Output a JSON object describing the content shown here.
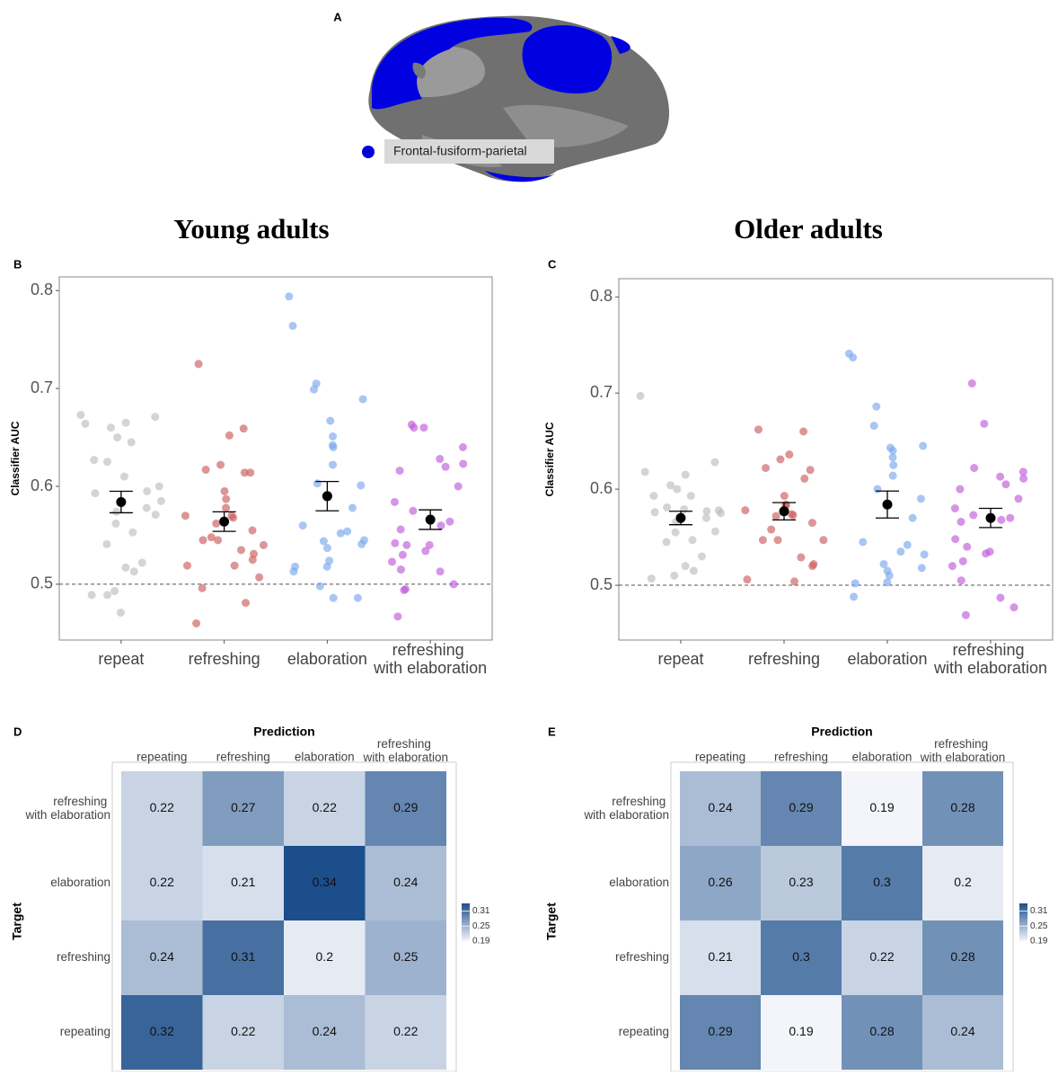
{
  "figure_a": {
    "label": "A",
    "legend": "Frontal-fusiform-parietal",
    "legend_color": "#0000d8"
  },
  "chart_data": [
    {
      "type": "strip",
      "label": "B",
      "title": "Young adults",
      "y_label": "Classifier AUC",
      "categories": [
        "repeat",
        "refreshing",
        "elaboration",
        "refreshing with elaboration"
      ],
      "colors": [
        "#bdbdbd",
        "#cd5c5c",
        "#7aa7ee",
        "#c05bd8"
      ],
      "points": [
        [
          0.673,
          0.671,
          0.664,
          0.665,
          0.66,
          0.65,
          0.645,
          0.627,
          0.625,
          0.61,
          0.6,
          0.595,
          0.593,
          0.585,
          0.578,
          0.574,
          0.571,
          0.562,
          0.553,
          0.541,
          0.522,
          0.517,
          0.513,
          0.493,
          0.489,
          0.489,
          0.471
        ],
        [
          0.725,
          0.659,
          0.652,
          0.622,
          0.617,
          0.614,
          0.614,
          0.595,
          0.587,
          0.578,
          0.57,
          0.57,
          0.568,
          0.562,
          0.555,
          0.548,
          0.545,
          0.545,
          0.54,
          0.535,
          0.531,
          0.525,
          0.519,
          0.519,
          0.507,
          0.496,
          0.481,
          0.46
        ],
        [
          0.794,
          0.764,
          0.705,
          0.699,
          0.689,
          0.667,
          0.651,
          0.642,
          0.64,
          0.622,
          0.603,
          0.601,
          0.578,
          0.56,
          0.554,
          0.552,
          0.545,
          0.544,
          0.541,
          0.537,
          0.524,
          0.518,
          0.518,
          0.513,
          0.498,
          0.486,
          0.486
        ],
        [
          0.663,
          0.66,
          0.66,
          0.64,
          0.628,
          0.623,
          0.62,
          0.616,
          0.6,
          0.584,
          0.575,
          0.564,
          0.56,
          0.556,
          0.542,
          0.54,
          0.54,
          0.534,
          0.53,
          0.523,
          0.515,
          0.513,
          0.5,
          0.495,
          0.494,
          0.467
        ]
      ],
      "means": [
        0.584,
        0.564,
        0.59,
        0.566
      ],
      "errors": [
        0.011,
        0.01,
        0.015,
        0.01
      ],
      "reference_line": 0.5,
      "ylim": [
        0.443,
        0.814
      ],
      "yticks": [
        0.5,
        0.6,
        0.7,
        0.8
      ]
    },
    {
      "type": "strip",
      "label": "C",
      "title": "Older adults",
      "y_label": "Classifier AUC",
      "categories": [
        "repeat",
        "refreshing",
        "elaboration",
        "refreshing with elaboration"
      ],
      "colors": [
        "#bdbdbd",
        "#cd5c5c",
        "#7aa7ee",
        "#c05bd8"
      ],
      "points": [
        [
          0.697,
          0.628,
          0.618,
          0.615,
          0.604,
          0.6,
          0.593,
          0.593,
          0.581,
          0.579,
          0.578,
          0.577,
          0.576,
          0.575,
          0.57,
          0.566,
          0.556,
          0.555,
          0.547,
          0.545,
          0.53,
          0.52,
          0.515,
          0.51,
          0.507
        ],
        [
          0.662,
          0.66,
          0.636,
          0.631,
          0.622,
          0.62,
          0.611,
          0.593,
          0.584,
          0.583,
          0.578,
          0.574,
          0.573,
          0.572,
          0.565,
          0.558,
          0.547,
          0.547,
          0.547,
          0.529,
          0.522,
          0.52,
          0.506,
          0.504
        ],
        [
          0.741,
          0.737,
          0.686,
          0.666,
          0.645,
          0.643,
          0.64,
          0.633,
          0.625,
          0.614,
          0.6,
          0.59,
          0.57,
          0.545,
          0.542,
          0.535,
          0.532,
          0.522,
          0.518,
          0.515,
          0.51,
          0.503,
          0.502,
          0.488
        ],
        [
          0.71,
          0.668,
          0.622,
          0.618,
          0.613,
          0.611,
          0.605,
          0.6,
          0.59,
          0.58,
          0.573,
          0.57,
          0.568,
          0.566,
          0.548,
          0.54,
          0.535,
          0.533,
          0.525,
          0.52,
          0.505,
          0.487,
          0.477,
          0.469
        ]
      ],
      "means": [
        0.57,
        0.577,
        0.584,
        0.57
      ],
      "errors": [
        0.007,
        0.009,
        0.014,
        0.01
      ],
      "reference_line": 0.5,
      "ylim": [
        0.443,
        0.819
      ],
      "yticks": [
        0.5,
        0.6,
        0.7,
        0.8
      ]
    },
    {
      "type": "heatmap",
      "label": "D",
      "x_label": "Prediction",
      "y_label": "Target",
      "x_categories": [
        "repeating",
        "refreshing",
        "elaboration",
        "refreshing with elaboration"
      ],
      "y_categories": [
        "refreshing with elaboration",
        "elaboration",
        "refreshing",
        "repeating"
      ],
      "values": [
        [
          0.22,
          0.27,
          0.22,
          0.29
        ],
        [
          0.22,
          0.21,
          0.34,
          0.24
        ],
        [
          0.24,
          0.31,
          0.2,
          0.25
        ],
        [
          0.32,
          0.22,
          0.24,
          0.22
        ]
      ],
      "colors": [
        "#f3f5fa",
        "#1c4e8b"
      ],
      "clim": [
        0.19,
        0.34
      ],
      "colorbar_ticks": [
        0.19,
        0.25,
        0.31
      ]
    },
    {
      "type": "heatmap",
      "label": "E",
      "x_label": "Prediction",
      "y_label": "Target",
      "x_categories": [
        "repeating",
        "refreshing",
        "elaboration",
        "refreshing with elaboration"
      ],
      "y_categories": [
        "refreshing with elaboration",
        "elaboration",
        "refreshing",
        "repeating"
      ],
      "values": [
        [
          0.24,
          0.29,
          0.19,
          0.28
        ],
        [
          0.26,
          0.23,
          0.3,
          0.2
        ],
        [
          0.21,
          0.3,
          0.22,
          0.28
        ],
        [
          0.29,
          0.19,
          0.28,
          0.24
        ]
      ],
      "colors": [
        "#f3f5fa",
        "#1c4e8b"
      ],
      "clim": [
        0.19,
        0.34
      ],
      "colorbar_ticks": [
        0.19,
        0.25,
        0.31
      ]
    }
  ]
}
